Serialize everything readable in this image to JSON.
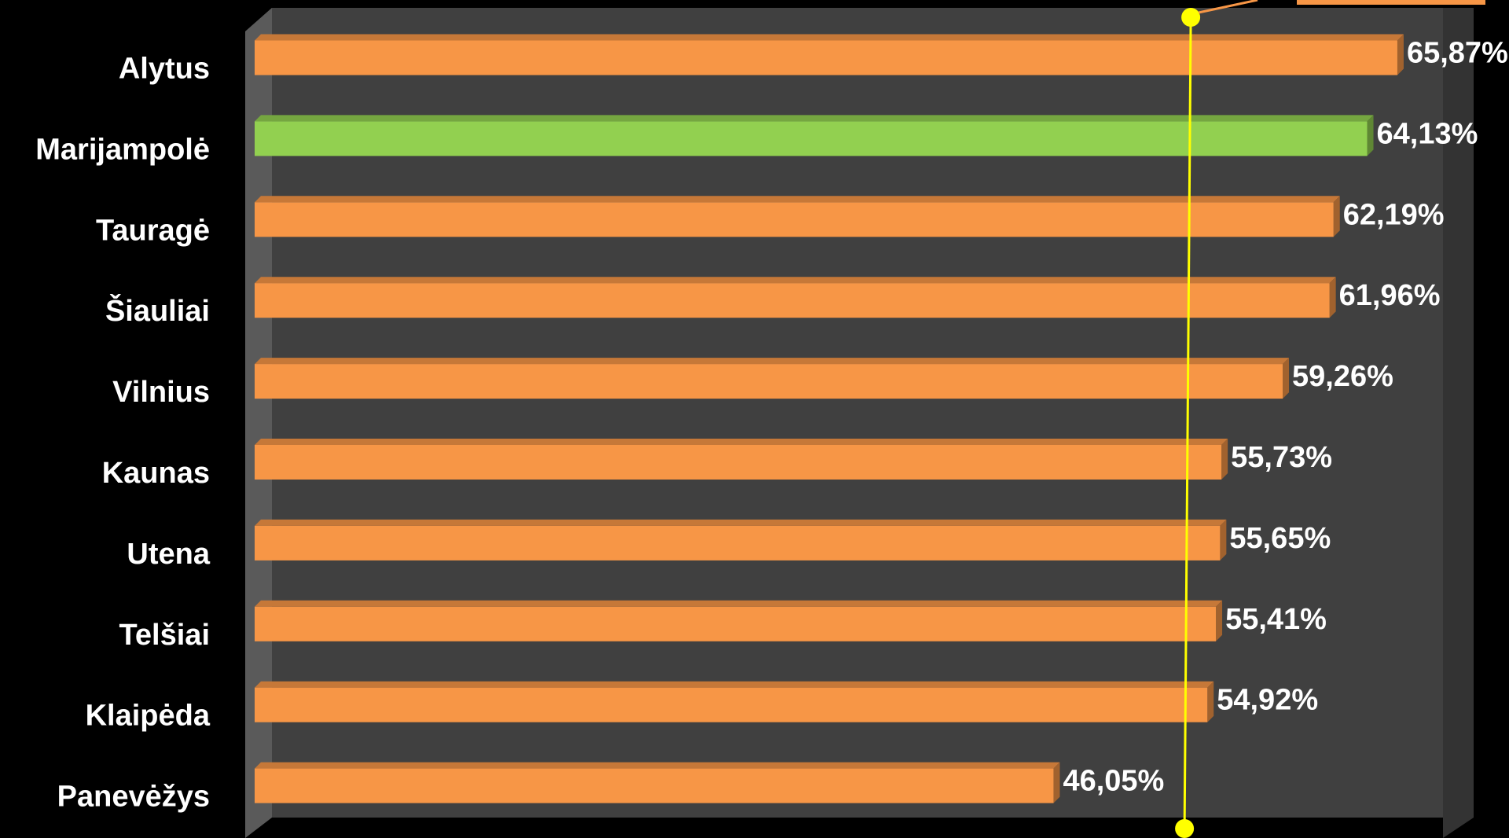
{
  "chart_data": {
    "type": "bar",
    "orientation": "horizontal",
    "categories": [
      "Alytus",
      "Marijampolė",
      "Tauragė",
      "Šiauliai",
      "Vilnius",
      "Kaunas",
      "Utena",
      "Telšiai",
      "Klaipėda",
      "Panevėžys"
    ],
    "values": [
      65.87,
      64.13,
      62.19,
      61.96,
      59.26,
      55.73,
      55.65,
      55.41,
      54.92,
      46.05
    ],
    "value_labels": [
      "65,87%",
      "64,13%",
      "62,19%",
      "61,96%",
      "59,26%",
      "55,73%",
      "55,65%",
      "55,41%",
      "54,92%",
      "46,05%"
    ],
    "colors": [
      "#f79646",
      "#92d050",
      "#f79646",
      "#f79646",
      "#f79646",
      "#f79646",
      "#f79646",
      "#f79646",
      "#f79646",
      "#f79646"
    ],
    "xlim": [
      0,
      68.5
    ],
    "reference_line": {
      "value": 53.6,
      "color": "#ffff00"
    }
  }
}
